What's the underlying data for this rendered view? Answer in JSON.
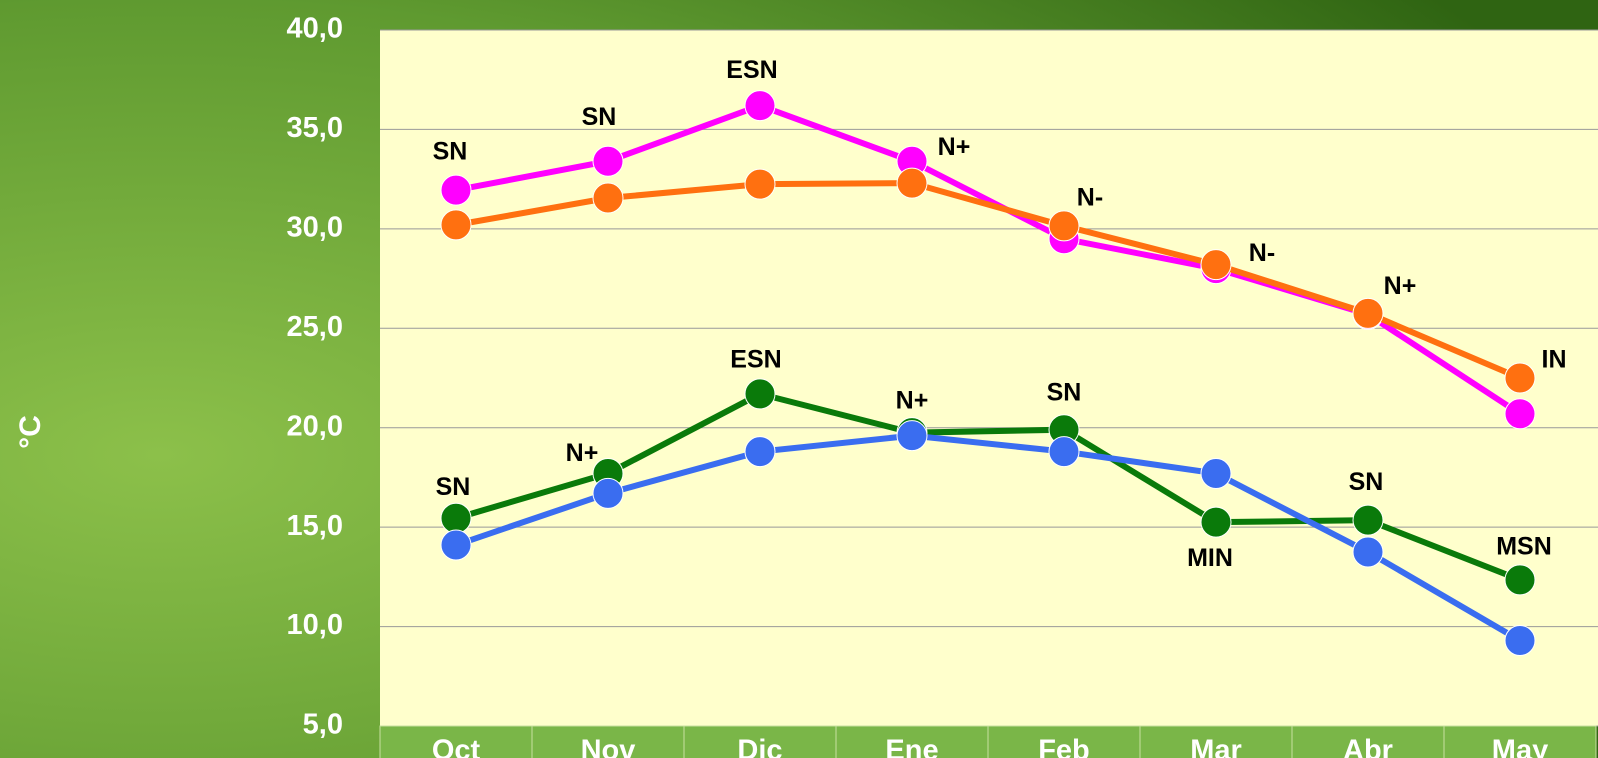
{
  "chart_data": {
    "type": "line",
    "y_label": "°C",
    "categories": [
      "Oct",
      "Nov",
      "Dic",
      "Ene",
      "Feb",
      "Mar",
      "Abr",
      "May"
    ],
    "ylim": [
      5,
      40
    ],
    "yticks": [
      {
        "value": 5,
        "label": "5,0"
      },
      {
        "value": 10,
        "label": "10,0"
      },
      {
        "value": 15,
        "label": "15,0"
      },
      {
        "value": 20,
        "label": "20,0"
      },
      {
        "value": 25,
        "label": "25,0"
      },
      {
        "value": 30,
        "label": "30,0"
      },
      {
        "value": 35,
        "label": "35,0"
      },
      {
        "value": 40,
        "label": "40,0"
      }
    ],
    "grid": true,
    "series": [
      {
        "color": "#ff00ff",
        "values": [
          31.95,
          33.4,
          36.2,
          33.4,
          29.5,
          28.0,
          25.7,
          20.7
        ],
        "point_labels": [
          "SN",
          "SN",
          "ESN",
          "N+",
          "N-",
          "N-",
          "N+",
          "IN"
        ]
      },
      {
        "color": "#ff7010",
        "values": [
          30.2,
          31.55,
          32.25,
          32.3,
          30.15,
          28.2,
          25.75,
          22.5
        ]
      },
      {
        "color": "#0a7a0a",
        "values": [
          15.45,
          17.7,
          21.7,
          19.75,
          19.9,
          15.25,
          15.35,
          12.35
        ],
        "point_labels": [
          "SN",
          "N+",
          "ESN",
          "N+",
          "SN",
          "MIN",
          "SN",
          "MSN"
        ]
      },
      {
        "color": "#3a6df0",
        "values": [
          14.1,
          16.7,
          18.8,
          19.6,
          18.8,
          17.7,
          13.75,
          9.3
        ]
      }
    ]
  }
}
